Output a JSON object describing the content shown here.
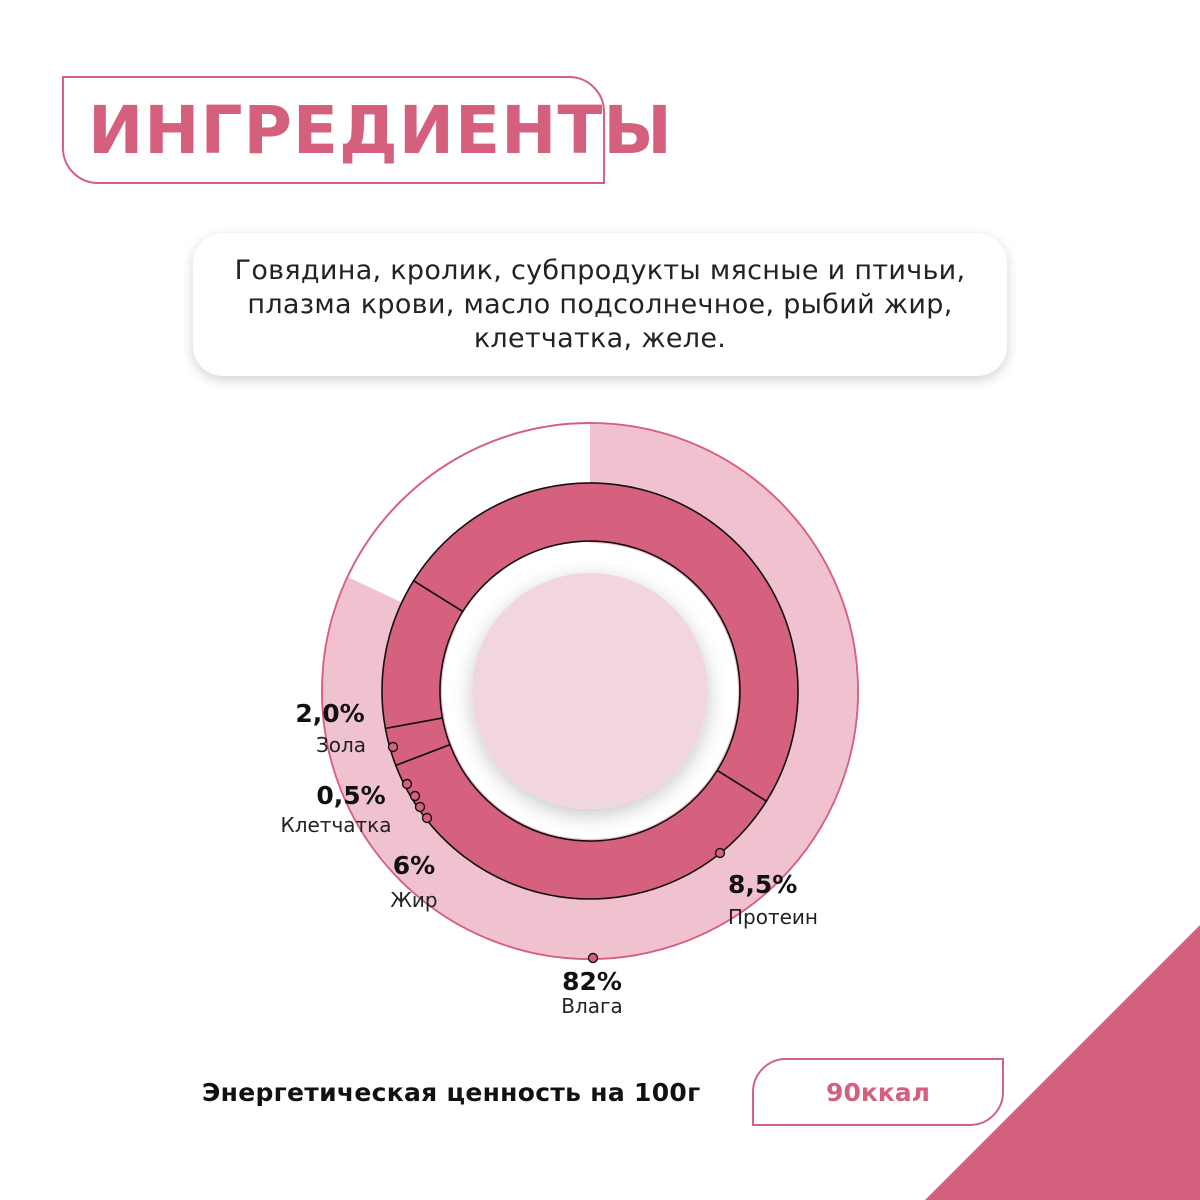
{
  "header": {
    "title": "ИНГРЕДИЕНТЫ"
  },
  "ingredients": {
    "text": "Говядина, кролик, субпродукты мясные и птичьи, плазма крови, масло подсолнечное, рыбий жир, клетчатка, желе."
  },
  "chart_data": {
    "type": "pie",
    "title": "",
    "series": [
      {
        "label": "Влага",
        "value": 82,
        "display": "82%"
      },
      {
        "label": "Протеин",
        "value": 8.5,
        "display": "8,5%"
      },
      {
        "label": "Жир",
        "value": 6,
        "display": "6%"
      },
      {
        "label": "Клетчатка",
        "value": 0.5,
        "display": "0,5%"
      },
      {
        "label": "Зола",
        "value": 2.0,
        "display": "2,0%"
      }
    ],
    "colors": {
      "outer": "#f0c2cf",
      "inner": "#d6617f",
      "center": "#f2d6de",
      "stroke": "#d6617f"
    }
  },
  "energy": {
    "label": "Энергетическая ценность на 100г",
    "value": "90ккал"
  }
}
